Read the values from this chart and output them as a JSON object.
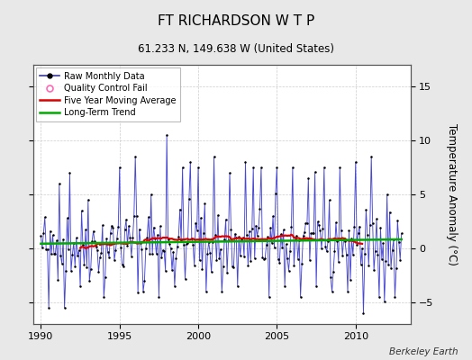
{
  "title": "FT RICHARDSON W T P",
  "subtitle": "61.233 N, 149.638 W (United States)",
  "ylabel": "Temperature Anomaly (°C)",
  "credit": "Berkeley Earth",
  "xlim": [
    1989.5,
    2013.5
  ],
  "ylim": [
    -7,
    17
  ],
  "yticks": [
    -5,
    0,
    5,
    10,
    15
  ],
  "xticks": [
    1990,
    1995,
    2000,
    2005,
    2010
  ],
  "bg_color": "#e8e8e8",
  "plot_bg": "#ffffff",
  "raw_color": "#3333cc",
  "raw_marker_color": "#000000",
  "ma_color": "#dd0000",
  "trend_color": "#00aa00",
  "qc_color": "#ff69b4",
  "seed": 42,
  "n_months": 276,
  "start_year": 1990.0,
  "title_fontsize": 11,
  "subtitle_fontsize": 8.5,
  "axis_fontsize": 8,
  "legend_fontsize": 7,
  "credit_fontsize": 7.5
}
